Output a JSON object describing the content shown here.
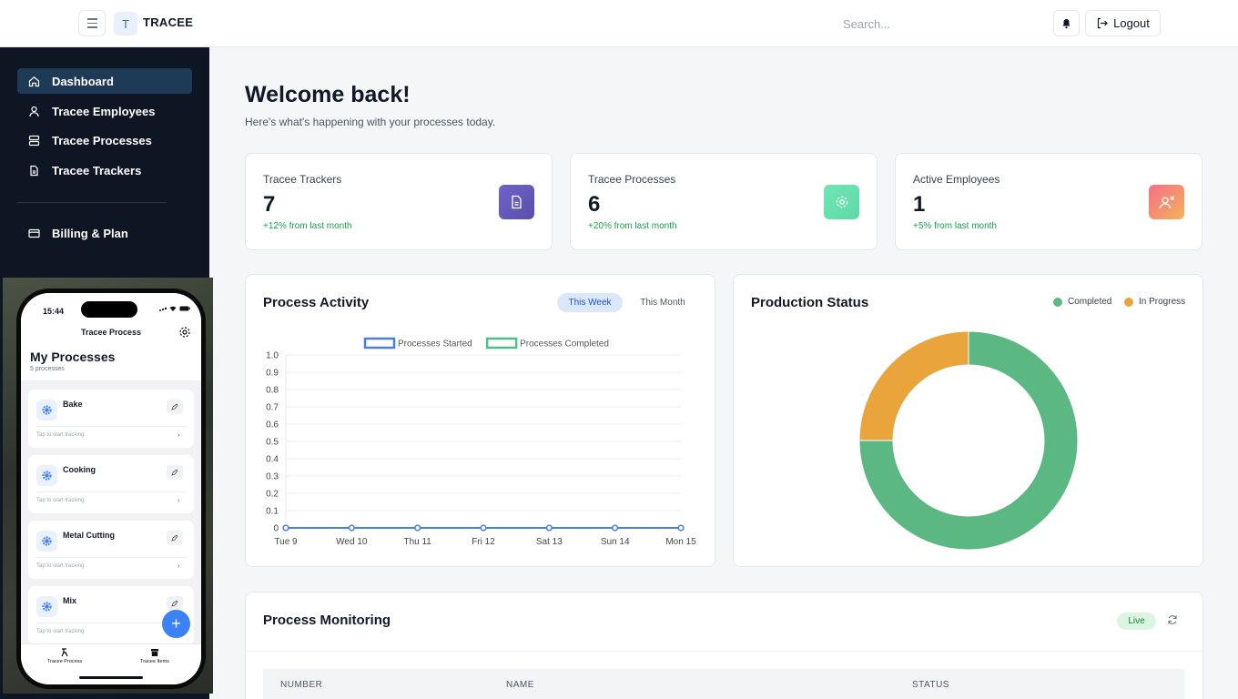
{
  "app": {
    "logo_letter": "T",
    "name": "TRACEE"
  },
  "header": {
    "search_placeholder": "Search...",
    "logout_label": "Logout"
  },
  "sidebar": {
    "items": [
      {
        "label": "Dashboard",
        "icon": "home-icon",
        "active": true
      },
      {
        "label": "Tracee Employees",
        "icon": "user-icon"
      },
      {
        "label": "Tracee Processes",
        "icon": "server-icon"
      },
      {
        "label": "Tracee Trackers",
        "icon": "document-icon"
      }
    ],
    "billing": {
      "label": "Billing & Plan",
      "icon": "credit-card-icon"
    }
  },
  "welcome": {
    "title": "Welcome back!",
    "subtitle": "Here's what's happening with your processes today."
  },
  "stats": [
    {
      "label": "Tracee Trackers",
      "value": "7",
      "change": "+12% from last month",
      "icon": "document-icon",
      "color": "#6d5bb7"
    },
    {
      "label": "Tracee Processes",
      "value": "6",
      "change": "+20% from last month",
      "icon": "gear-icon",
      "color": "#5fd9a4"
    },
    {
      "label": "Active Employees",
      "value": "1",
      "change": "+5% from last month",
      "icon": "user-x-icon",
      "color": "#f08a7e"
    }
  ],
  "process_activity": {
    "title": "Process Activity",
    "tabs": [
      {
        "label": "This Week",
        "active": true
      },
      {
        "label": "This Month",
        "active": false
      }
    ]
  },
  "production_status": {
    "title": "Production Status"
  },
  "chart_data": [
    {
      "type": "line",
      "x": [
        "Tue 9",
        "Wed 10",
        "Thu 11",
        "Fri 12",
        "Sat 13",
        "Sun 14",
        "Mon 15"
      ],
      "series": [
        {
          "name": "Processes Started",
          "values": [
            0,
            0,
            0,
            0,
            0,
            0,
            0
          ],
          "color": "#4a7fe0"
        },
        {
          "name": "Processes Completed",
          "values": [
            0,
            0,
            0,
            0,
            0,
            0,
            0
          ],
          "color": "#4fbf8a"
        }
      ],
      "ylim": [
        0,
        1.0
      ],
      "yticks": [
        "0",
        "0.1",
        "0.2",
        "0.3",
        "0.4",
        "0.5",
        "0.6",
        "0.7",
        "0.8",
        "0.9",
        "1.0"
      ],
      "legend": "top",
      "grid": true
    },
    {
      "type": "pie",
      "categories": [
        "Completed",
        "In Progress"
      ],
      "values": [
        75,
        25
      ],
      "colors": [
        "#5cb883",
        "#e9a43c"
      ],
      "legend": "top-right"
    }
  ],
  "monitoring": {
    "title": "Process Monitoring",
    "live_label": "Live",
    "columns": [
      "NUMBER",
      "NAME",
      "STATUS"
    ]
  },
  "phone": {
    "time": "15:44",
    "nav_title": "Tracee Process",
    "heading": "My Processes",
    "count": "5 processes",
    "tap_hint": "Tap to start tracking",
    "processes": [
      "Bake",
      "Cooking",
      "Metal Cutting",
      "Mix"
    ],
    "tabs": [
      "Tracee Process",
      "Tracee Items"
    ]
  }
}
